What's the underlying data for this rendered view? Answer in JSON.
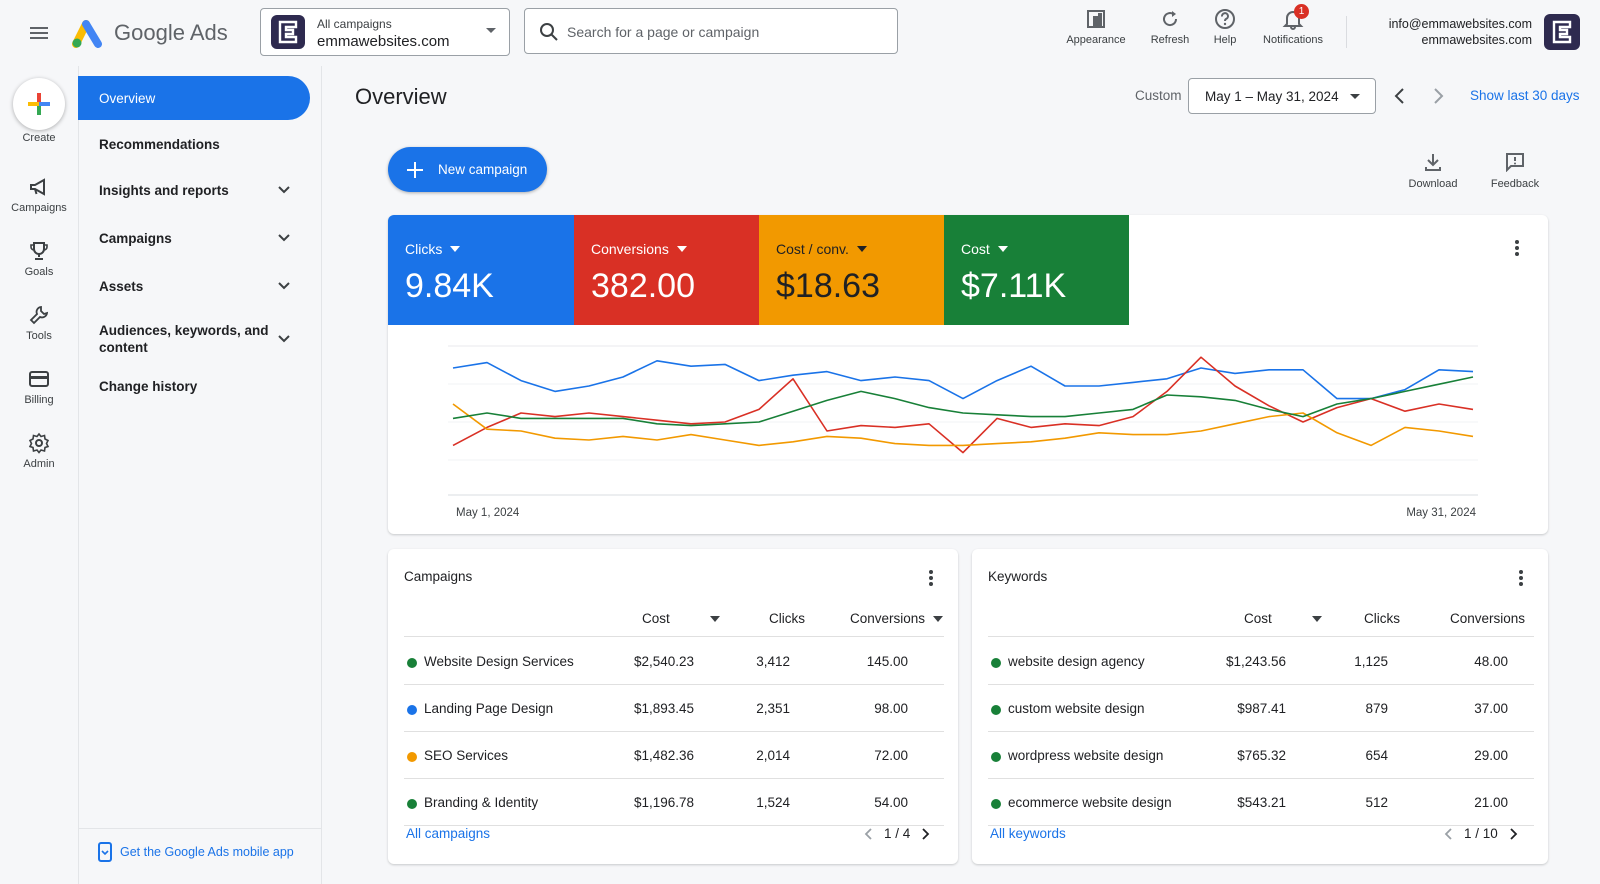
{
  "app": {
    "name": "Google Ads"
  },
  "header": {
    "account_line1": "All campaigns",
    "account_line2": "emmawebsites.com",
    "search_placeholder": "Search for a page or campaign",
    "buttons": [
      {
        "label": "Appearance",
        "icon": "appearance-icon"
      },
      {
        "label": "Refresh",
        "icon": "refresh-icon"
      },
      {
        "label": "Help",
        "icon": "help-icon"
      },
      {
        "label": "Notifications",
        "icon": "bell-icon",
        "badge": "1"
      }
    ],
    "user_email": "info@emmawebsites.com",
    "user_account": "emmawebsites.com"
  },
  "rail": {
    "create_label": "Create",
    "items": [
      {
        "label": "Campaigns",
        "icon": "megaphone-icon"
      },
      {
        "label": "Goals",
        "icon": "trophy-icon"
      },
      {
        "label": "Tools",
        "icon": "wrench-icon"
      },
      {
        "label": "Billing",
        "icon": "card-icon"
      },
      {
        "label": "Admin",
        "icon": "gear-icon"
      }
    ]
  },
  "nav": {
    "items": [
      {
        "label": "Overview",
        "active": true
      },
      {
        "label": "Recommendations"
      },
      {
        "label": "Insights and reports",
        "expandable": true
      },
      {
        "label": "Campaigns",
        "expandable": true
      },
      {
        "label": "Assets",
        "expandable": true
      },
      {
        "label": "Audiences, keywords, and content",
        "expandable": true
      },
      {
        "label": "Change history"
      }
    ],
    "mobile_link": "Get the Google Ads mobile app"
  },
  "main": {
    "title": "Overview",
    "date_mode": "Custom",
    "date_range": "May 1 – May 31, 2024",
    "show_last": "Show last 30 days",
    "new_campaign": "New campaign",
    "download": "Download",
    "feedback": "Feedback"
  },
  "metrics": [
    {
      "label": "Clicks",
      "value": "9.84K",
      "color": "#1a73e8"
    },
    {
      "label": "Conversions",
      "value": "382.00",
      "color": "#d93025"
    },
    {
      "label": "Cost / conv.",
      "value": "$18.63",
      "color": "#f29900"
    },
    {
      "label": "Cost",
      "value": "$7.11K",
      "color": "#188038"
    }
  ],
  "chart_data": {
    "type": "line",
    "x_start_label": "May 1, 2024",
    "x_end_label": "May 31, 2024",
    "grid": true,
    "legend": "none",
    "note_scale": "series normalized, no y axis labels shown",
    "series": [
      {
        "color": "#1a73e8",
        "values": [
          65,
          68,
          58,
          52,
          55,
          60,
          69,
          66,
          67,
          58,
          61,
          63,
          58,
          60,
          58,
          48,
          58,
          66,
          55,
          55,
          57,
          59,
          65,
          62,
          64,
          64,
          48,
          48,
          53,
          64,
          63
        ]
      },
      {
        "color": "#d93025",
        "values": [
          22,
          32,
          40,
          38,
          40,
          38,
          36,
          34,
          35,
          42,
          59,
          30,
          33,
          32,
          34,
          18,
          37,
          32,
          34,
          33,
          38,
          52,
          71,
          55,
          44,
          35,
          43,
          48,
          41,
          45,
          42
        ]
      },
      {
        "color": "#f29900",
        "values": [
          45,
          31,
          30,
          26,
          25,
          27,
          25,
          28,
          25,
          22,
          24,
          27,
          26,
          23,
          22,
          22,
          23,
          24,
          26,
          29,
          28,
          28,
          30,
          34,
          38,
          40,
          29,
          22,
          32,
          30,
          27
        ]
      },
      {
        "color": "#188038",
        "values": [
          37,
          40,
          37,
          37,
          37,
          37,
          34,
          33,
          34,
          35,
          41,
          47,
          52,
          48,
          43,
          40,
          39,
          38,
          38,
          40,
          42,
          50,
          49,
          47,
          42,
          38,
          45,
          48,
          52,
          56,
          60
        ]
      }
    ]
  },
  "campaigns": {
    "title": "Campaigns",
    "columns": [
      "Cost",
      "Clicks",
      "Conversions"
    ],
    "rows": [
      {
        "name": "Website Design Services",
        "cost": "$2,540.23",
        "clicks": "3,412",
        "conversions": "145.00",
        "status": "#188038"
      },
      {
        "name": "Landing Page Design",
        "cost": "$1,893.45",
        "clicks": "2,351",
        "conversions": "98.00",
        "status": "#1a73e8"
      },
      {
        "name": "SEO Services",
        "cost": "$1,482.36",
        "clicks": "2,014",
        "conversions": "72.00",
        "status": "#f29900"
      },
      {
        "name": "Branding & Identity",
        "cost": "$1,196.78",
        "clicks": "1,524",
        "conversions": "54.00",
        "status": "#188038"
      }
    ],
    "link": "All campaigns",
    "page": "1 / 4"
  },
  "keywords": {
    "title": "Keywords",
    "columns": [
      "Cost",
      "Clicks",
      "Conversions"
    ],
    "rows": [
      {
        "name": "website design agency",
        "cost": "$1,243.56",
        "clicks": "1,125",
        "conversions": "48.00",
        "status": "#188038"
      },
      {
        "name": "custom website design",
        "cost": "$987.41",
        "clicks": "879",
        "conversions": "37.00",
        "status": "#188038"
      },
      {
        "name": "wordpress website design",
        "cost": "$765.32",
        "clicks": "654",
        "conversions": "29.00",
        "status": "#188038"
      },
      {
        "name": "ecommerce website design",
        "cost": "$543.21",
        "clicks": "512",
        "conversions": "21.00",
        "status": "#188038"
      }
    ],
    "link": "All keywords",
    "page": "1 / 10"
  }
}
